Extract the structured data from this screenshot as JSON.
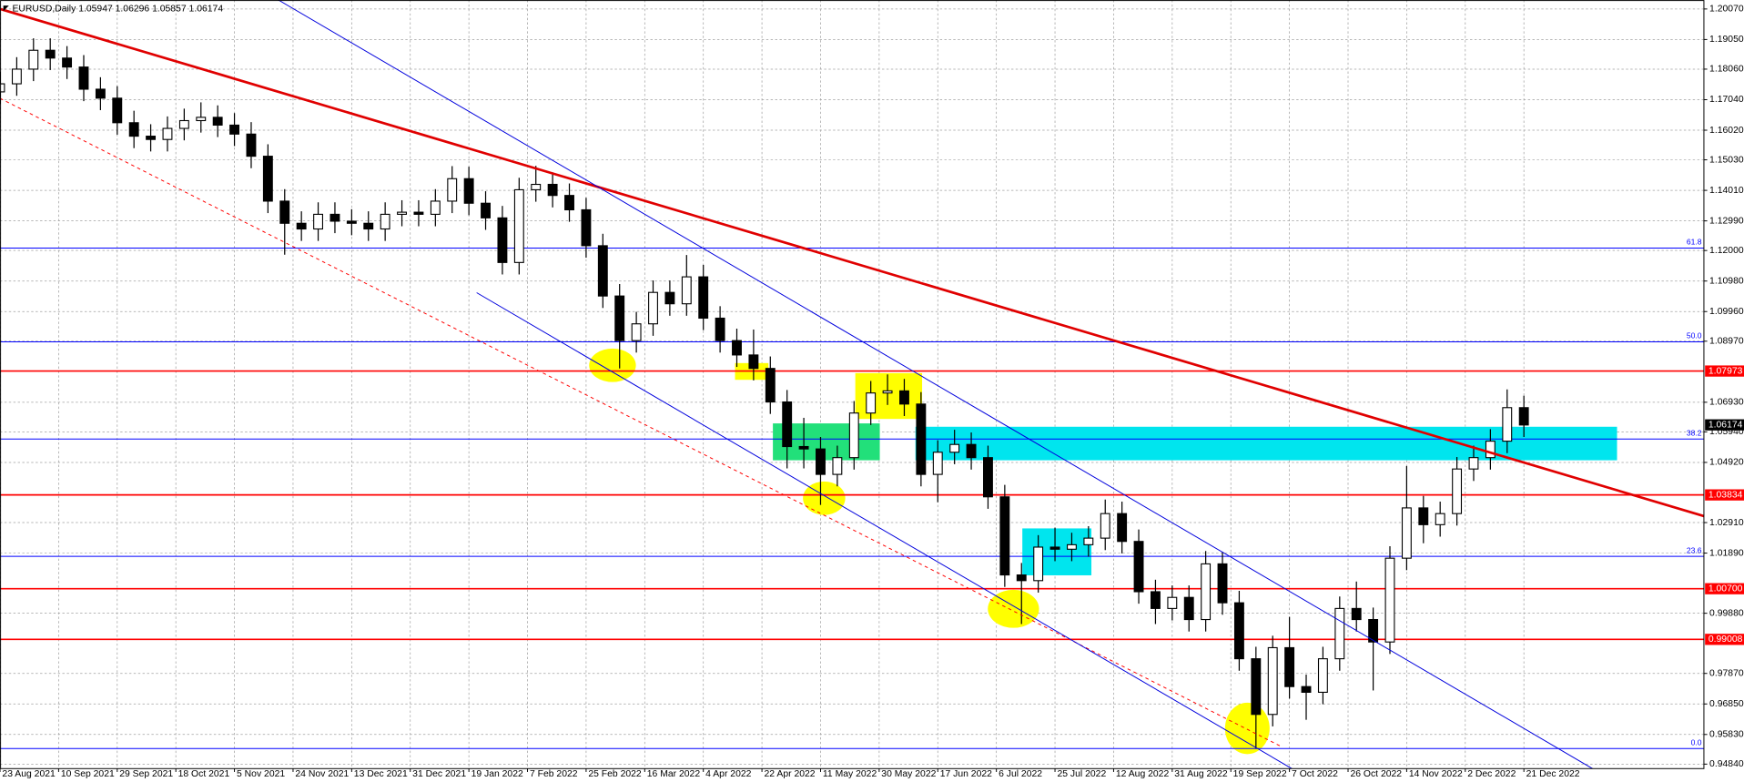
{
  "header": {
    "title": "EURUSD,Daily 1.05947 1.06296 1.05857 1.06174"
  },
  "chart_data": {
    "type": "candlestick",
    "x": [
      0,
      4,
      8,
      12,
      16,
      20,
      24,
      28,
      32,
      36,
      40,
      44,
      48,
      52,
      56,
      60,
      64,
      68,
      72,
      76,
      80,
      84,
      88,
      92,
      96,
      100,
      104,
      108,
      112,
      116,
      120,
      124,
      128,
      132,
      136,
      140,
      144,
      148,
      152,
      156,
      160,
      164,
      168,
      172,
      176,
      180,
      184,
      188,
      192,
      196,
      200,
      204,
      208,
      212,
      216,
      220,
      224,
      228,
      232,
      236,
      240,
      244,
      248,
      252,
      256,
      260,
      264,
      268,
      272,
      276,
      280,
      284,
      288,
      292,
      296,
      300,
      304,
      308,
      312,
      316,
      320,
      324,
      328,
      332,
      336,
      340,
      344,
      348,
      352,
      356,
      360,
      364
    ],
    "open": [
      1.173,
      1.1757,
      1.1806,
      1.1869,
      1.1843,
      1.1813,
      1.1739,
      1.1709,
      1.1627,
      1.1582,
      1.1571,
      1.1608,
      1.1634,
      1.1645,
      1.1619,
      1.1589,
      1.1515,
      1.1365,
      1.1291,
      1.1272,
      1.1321,
      1.1298,
      1.1291,
      1.1272,
      1.1321,
      1.1328,
      1.1321,
      1.1365,
      1.144,
      1.1358,
      1.1309,
      1.116,
      1.1403,
      1.1421,
      1.1384,
      1.1336,
      1.1216,
      1.1048,
      1.0899,
      1.0955,
      1.106,
      1.1022,
      1.1112,
      1.0974,
      1.0899,
      1.0851,
      1.0806,
      1.0694,
      1.0545,
      1.0537,
      1.0452,
      1.0508,
      1.0657,
      1.0724,
      1.0731,
      1.0687,
      1.0452,
      1.0526,
      1.0552,
      1.0508,
      1.0377,
      1.0116,
      1.0097,
      1.0209,
      1.0202,
      1.0217,
      1.0239,
      1.0321,
      1.0228,
      1.006,
      1.0004,
      1.0041,
      0.9967,
      1.0153,
      1.0023,
      0.9836,
      0.965,
      0.9873,
      0.9743,
      0.9724,
      0.9836,
      1.0004,
      0.9967,
      0.9892,
      1.0172,
      1.034,
      1.0284,
      1.0321,
      1.047,
      1.0508,
      1.0563,
      1.0675
    ],
    "high": [
      1.1797,
      1.1846,
      1.1909,
      1.1909,
      1.1883,
      1.1853,
      1.1779,
      1.1749,
      1.1667,
      1.1622,
      1.1648,
      1.1674,
      1.1695,
      1.1685,
      1.1659,
      1.1629,
      1.1555,
      1.1405,
      1.1331,
      1.1361,
      1.1361,
      1.1338,
      1.1331,
      1.1361,
      1.1368,
      1.1368,
      1.1405,
      1.1482,
      1.148,
      1.1398,
      1.1349,
      1.1443,
      1.1483,
      1.1461,
      1.1424,
      1.1376,
      1.1256,
      1.1088,
      1.0995,
      1.11,
      1.11,
      1.1185,
      1.1152,
      1.1014,
      1.0939,
      1.0936,
      1.0846,
      1.0734,
      1.0641,
      1.0577,
      1.0548,
      1.0697,
      1.0764,
      1.0786,
      1.0771,
      1.0727,
      1.0566,
      1.0601,
      1.0592,
      1.0548,
      1.0417,
      1.0156,
      1.0249,
      1.0274,
      1.0257,
      1.0279,
      1.0368,
      1.0361,
      1.0268,
      1.01,
      1.0081,
      1.0081,
      1.0196,
      1.0193,
      1.0063,
      0.9876,
      0.9913,
      0.9976,
      0.9783,
      0.9876,
      1.0044,
      1.0094,
      1.0007,
      1.0212,
      1.048,
      1.038,
      1.0361,
      1.051,
      1.0548,
      1.0603,
      1.0736,
      1.0715
    ],
    "low": [
      1.169,
      1.1717,
      1.1766,
      1.1803,
      1.1773,
      1.1699,
      1.1669,
      1.1587,
      1.1542,
      1.1531,
      1.1531,
      1.1568,
      1.1594,
      1.1579,
      1.1549,
      1.1475,
      1.1325,
      1.1186,
      1.1232,
      1.1232,
      1.1258,
      1.1251,
      1.1232,
      1.1232,
      1.1281,
      1.1281,
      1.1281,
      1.1325,
      1.1318,
      1.1269,
      1.112,
      1.112,
      1.1363,
      1.1344,
      1.1296,
      1.1176,
      1.1008,
      1.0806,
      1.0859,
      1.0915,
      1.0982,
      1.0982,
      1.0934,
      1.0859,
      1.0811,
      1.0766,
      1.0654,
      1.0472,
      1.0472,
      1.035,
      1.0412,
      1.0468,
      1.0617,
      1.0684,
      1.0647,
      1.0412,
      1.0359,
      1.0486,
      1.0468,
      1.0337,
      1.0076,
      0.9952,
      1.0057,
      1.0162,
      1.0162,
      1.0177,
      1.0199,
      1.0188,
      1.002,
      0.9952,
      0.9964,
      0.9927,
      0.9927,
      0.9983,
      0.9796,
      0.9536,
      0.961,
      0.9703,
      0.9632,
      0.9684,
      0.9796,
      0.9927,
      0.973,
      0.9852,
      1.0132,
      1.0222,
      1.0244,
      1.0281,
      1.043,
      1.0468,
      1.0523,
      1.0577
    ],
    "close": [
      1.1757,
      1.1806,
      1.1869,
      1.1843,
      1.1813,
      1.1739,
      1.1709,
      1.1627,
      1.1582,
      1.1571,
      1.1608,
      1.1634,
      1.1645,
      1.1619,
      1.1589,
      1.1515,
      1.1365,
      1.1291,
      1.1272,
      1.1321,
      1.1298,
      1.1291,
      1.1272,
      1.1321,
      1.1328,
      1.1321,
      1.1365,
      1.144,
      1.1358,
      1.1309,
      1.116,
      1.1403,
      1.1421,
      1.1384,
      1.1336,
      1.1216,
      1.1048,
      1.0899,
      1.0955,
      1.106,
      1.1022,
      1.1112,
      1.0974,
      1.0899,
      1.0851,
      1.0806,
      1.0694,
      1.0545,
      1.0537,
      1.0452,
      1.0508,
      1.0657,
      1.0724,
      1.0731,
      1.0687,
      1.0452,
      1.0526,
      1.0552,
      1.0508,
      1.0377,
      1.0116,
      1.0097,
      1.0209,
      1.0202,
      1.0217,
      1.0239,
      1.0321,
      1.0228,
      1.006,
      1.0004,
      1.0041,
      0.9967,
      1.0153,
      1.0023,
      0.9836,
      0.965,
      0.9873,
      0.9743,
      0.9724,
      0.9836,
      1.0004,
      0.9967,
      0.9892,
      1.0172,
      1.034,
      1.0284,
      1.0321,
      1.047,
      1.0508,
      1.0563,
      1.0675,
      1.0617
    ],
    "xlim": [
      0,
      407
    ],
    "ylim": [
      0.9469,
      1.2037
    ],
    "xticks": [
      {
        "value": 0,
        "label": "23 Aug 2021"
      },
      {
        "value": 14,
        "label": "10 Sep 2021"
      },
      {
        "value": 28,
        "label": "29 Sep 2021"
      },
      {
        "value": 42,
        "label": "18 Oct 2021"
      },
      {
        "value": 56,
        "label": "5 Nov 2021"
      },
      {
        "value": 70,
        "label": "24 Nov 2021"
      },
      {
        "value": 84,
        "label": "13 Dec 2021"
      },
      {
        "value": 98,
        "label": "31 Dec 2021"
      },
      {
        "value": 112,
        "label": "19 Jan 2022"
      },
      {
        "value": 126,
        "label": "7 Feb 2022"
      },
      {
        "value": 140,
        "label": "25 Feb 2022"
      },
      {
        "value": 154,
        "label": "16 Mar 2022"
      },
      {
        "value": 168,
        "label": "4 Apr 2022"
      },
      {
        "value": 182,
        "label": "22 Apr 2022"
      },
      {
        "value": 196,
        "label": "11 May 2022"
      },
      {
        "value": 210,
        "label": "30 May 2022"
      },
      {
        "value": 224,
        "label": "17 Jun 2022"
      },
      {
        "value": 238,
        "label": "6 Jul 2022"
      },
      {
        "value": 252,
        "label": "25 Jul 2022"
      },
      {
        "value": 266,
        "label": "12 Aug 2022"
      },
      {
        "value": 280,
        "label": "31 Aug 2022"
      },
      {
        "value": 294,
        "label": "19 Sep 2022"
      },
      {
        "value": 308,
        "label": "7 Oct 2022"
      },
      {
        "value": 322,
        "label": "26 Oct 2022"
      },
      {
        "value": 336,
        "label": "14 Nov 2022"
      },
      {
        "value": 350,
        "label": "2 Dec 2022"
      },
      {
        "value": 364,
        "label": "21 Dec 2022"
      }
    ],
    "yticks": [
      {
        "value": 1.2007,
        "label": "1.20070"
      },
      {
        "value": 1.1905,
        "label": "1.19050"
      },
      {
        "value": 1.1806,
        "label": "1.18060"
      },
      {
        "value": 1.1704,
        "label": "1.17040"
      },
      {
        "value": 1.1602,
        "label": "1.16020"
      },
      {
        "value": 1.1503,
        "label": "1.15030"
      },
      {
        "value": 1.1401,
        "label": "1.14010"
      },
      {
        "value": 1.1299,
        "label": "1.12990"
      },
      {
        "value": 1.12,
        "label": "1.12000"
      },
      {
        "value": 1.1098,
        "label": "1.10980"
      },
      {
        "value": 1.0996,
        "label": "1.09960"
      },
      {
        "value": 1.0897,
        "label": "1.08970"
      },
      {
        "value": 1.0693,
        "label": "1.06930"
      },
      {
        "value": 1.0594,
        "label": "1.05940"
      },
      {
        "value": 1.0492,
        "label": "1.04920"
      },
      {
        "value": 1.0291,
        "label": "1.02910"
      },
      {
        "value": 1.0189,
        "label": "1.01890"
      },
      {
        "value": 0.9988,
        "label": "0.99880"
      },
      {
        "value": 0.9787,
        "label": "0.97870"
      },
      {
        "value": 0.9685,
        "label": "0.96850"
      },
      {
        "value": 0.9583,
        "label": "0.95830"
      },
      {
        "value": 0.9484,
        "label": "0.94840"
      }
    ],
    "grid": true,
    "levels": [
      1.07973,
      1.03834,
      {
        "value": 1.007,
        "label": "1.00700"
      },
      0.99008
    ],
    "level_color": "#ff0000",
    "fib_levels": [
      {
        "value": 1.1208,
        "label": "61.8"
      },
      {
        "value": 1.0895,
        "label": "50.0"
      },
      {
        "value": 1.057,
        "label": "38.2"
      },
      {
        "value": 1.0178,
        "label": "23.6"
      },
      {
        "value": 0.9536,
        "label": "0.0"
      }
    ],
    "fib_color": "#0000ff",
    "current_price": 1.06174
  }
}
